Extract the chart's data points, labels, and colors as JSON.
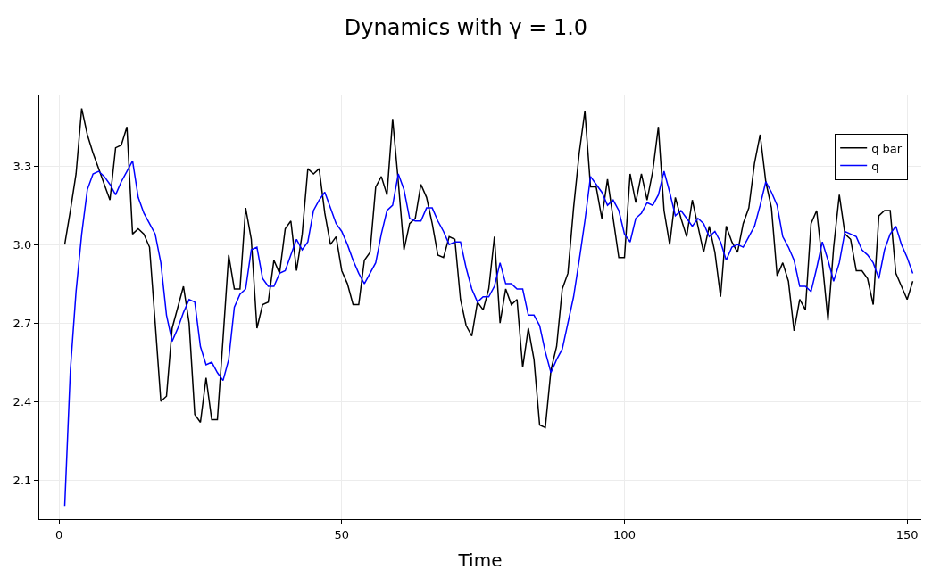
{
  "chart_data": {
    "type": "line",
    "title": "Dynamics with γ = 1.0",
    "xlabel": "Time",
    "x": [
      1,
      2,
      3,
      4,
      5,
      6,
      7,
      8,
      9,
      10,
      11,
      12,
      13,
      14,
      15,
      16,
      17,
      18,
      19,
      20,
      21,
      22,
      23,
      24,
      25,
      26,
      27,
      28,
      29,
      30,
      31,
      32,
      33,
      34,
      35,
      36,
      37,
      38,
      39,
      40,
      41,
      42,
      43,
      44,
      45,
      46,
      47,
      48,
      49,
      50,
      51,
      52,
      53,
      54,
      55,
      56,
      57,
      58,
      59,
      60,
      61,
      62,
      63,
      64,
      65,
      66,
      67,
      68,
      69,
      70,
      71,
      72,
      73,
      74,
      75,
      76,
      77,
      78,
      79,
      80,
      81,
      82,
      83,
      84,
      85,
      86,
      87,
      88,
      89,
      90,
      91,
      92,
      93,
      94,
      95,
      96,
      97,
      98,
      99,
      100,
      101,
      102,
      103,
      104,
      105,
      106,
      107,
      108,
      109,
      110,
      111,
      112,
      113,
      114,
      115,
      116,
      117,
      118,
      119,
      120,
      121,
      122,
      123,
      124,
      125,
      126,
      127,
      128,
      129,
      130,
      131,
      132,
      133,
      134,
      135,
      136,
      137,
      138,
      139,
      140,
      141,
      142,
      143,
      144,
      145,
      146,
      147,
      148,
      149,
      150,
      151
    ],
    "series": [
      {
        "name": "q bar",
        "color": "#000000",
        "values": [
          3.0,
          3.13,
          3.27,
          3.52,
          3.42,
          3.35,
          3.29,
          3.23,
          3.17,
          3.37,
          3.38,
          3.45,
          3.04,
          3.06,
          3.04,
          2.99,
          2.7,
          2.4,
          2.42,
          2.68,
          2.76,
          2.84,
          2.7,
          2.35,
          2.32,
          2.49,
          2.33,
          2.33,
          2.64,
          2.96,
          2.83,
          2.83,
          3.14,
          3.02,
          2.68,
          2.77,
          2.78,
          2.94,
          2.89,
          3.06,
          3.09,
          2.9,
          3.04,
          3.29,
          3.27,
          3.29,
          3.12,
          3.0,
          3.03,
          2.9,
          2.85,
          2.77,
          2.77,
          2.94,
          2.97,
          3.22,
          3.26,
          3.19,
          3.48,
          3.24,
          2.98,
          3.08,
          3.1,
          3.23,
          3.18,
          3.08,
          2.96,
          2.95,
          3.03,
          3.02,
          2.79,
          2.69,
          2.65,
          2.78,
          2.75,
          2.83,
          3.03,
          2.7,
          2.83,
          2.77,
          2.79,
          2.53,
          2.68,
          2.56,
          2.31,
          2.3,
          2.52,
          2.61,
          2.83,
          2.89,
          3.14,
          3.35,
          3.51,
          3.22,
          3.22,
          3.1,
          3.25,
          3.1,
          2.95,
          2.95,
          3.27,
          3.16,
          3.27,
          3.17,
          3.28,
          3.45,
          3.13,
          3.0,
          3.18,
          3.1,
          3.03,
          3.17,
          3.07,
          2.97,
          3.07,
          2.97,
          2.8,
          3.07,
          3.01,
          2.97,
          3.08,
          3.14,
          3.31,
          3.42,
          3.24,
          3.14,
          2.88,
          2.93,
          2.86,
          2.67,
          2.79,
          2.75,
          3.08,
          3.13,
          2.93,
          2.71,
          2.99,
          3.19,
          3.04,
          3.02,
          2.9,
          2.9,
          2.87,
          2.77,
          3.11,
          3.13,
          3.13,
          2.89,
          2.84,
          2.79,
          2.86
        ]
      },
      {
        "name": "q",
        "color": "#0000ff",
        "values": [
          2.0,
          2.52,
          2.82,
          3.04,
          3.21,
          3.27,
          3.28,
          3.26,
          3.23,
          3.19,
          3.24,
          3.28,
          3.32,
          3.18,
          3.12,
          3.08,
          3.04,
          2.93,
          2.73,
          2.63,
          2.68,
          2.74,
          2.79,
          2.78,
          2.61,
          2.54,
          2.55,
          2.51,
          2.48,
          2.56,
          2.76,
          2.81,
          2.83,
          2.98,
          2.99,
          2.87,
          2.84,
          2.84,
          2.89,
          2.9,
          2.96,
          3.02,
          2.98,
          3.01,
          3.13,
          3.17,
          3.2,
          3.14,
          3.08,
          3.05,
          3.0,
          2.94,
          2.89,
          2.85,
          2.89,
          2.93,
          3.04,
          3.13,
          3.15,
          3.27,
          3.21,
          3.1,
          3.09,
          3.09,
          3.14,
          3.14,
          3.09,
          3.05,
          3.0,
          3.01,
          3.01,
          2.91,
          2.83,
          2.78,
          2.8,
          2.8,
          2.84,
          2.93,
          2.85,
          2.85,
          2.83,
          2.83,
          2.73,
          2.73,
          2.69,
          2.59,
          2.51,
          2.56,
          2.6,
          2.7,
          2.8,
          2.94,
          3.09,
          3.26,
          3.23,
          3.2,
          3.15,
          3.17,
          3.13,
          3.04,
          3.01,
          3.1,
          3.12,
          3.16,
          3.15,
          3.19,
          3.28,
          3.2,
          3.11,
          3.13,
          3.1,
          3.07,
          3.1,
          3.08,
          3.03,
          3.05,
          3.01,
          2.94,
          2.99,
          3.0,
          2.99,
          3.03,
          3.07,
          3.15,
          3.24,
          3.2,
          3.15,
          3.03,
          2.99,
          2.94,
          2.84,
          2.84,
          2.82,
          2.91,
          3.01,
          2.94,
          2.86,
          2.93,
          3.05,
          3.04,
          3.03,
          2.98,
          2.96,
          2.93,
          2.87,
          2.98,
          3.04,
          3.07,
          3.0,
          2.95,
          2.89
        ]
      }
    ],
    "xlim": [
      -3.5,
      152.5
    ],
    "ylim": [
      1.95,
      3.57
    ],
    "xticks": [
      0,
      50,
      100,
      150
    ],
    "yticks": [
      2.1,
      2.4,
      2.7,
      {
        "value": 3.0,
        "label": "3.0"
      },
      3.3
    ],
    "grid": true,
    "legend": "top right",
    "marker": "none",
    "line_style": "solid"
  }
}
